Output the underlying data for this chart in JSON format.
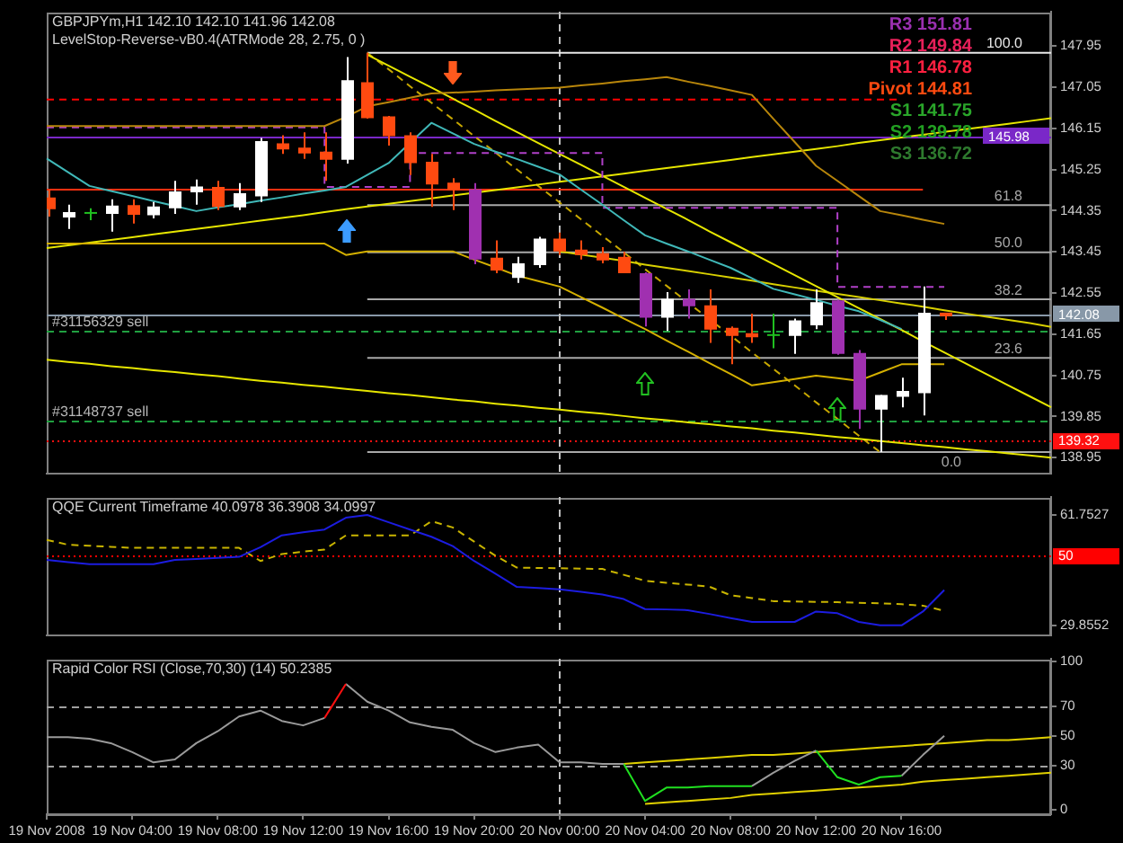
{
  "chart_data": [
    {
      "type": "candlestick",
      "title": "GBPJPYm,H1 142.10 142.10 141.96 142.08",
      "subtitle": "LevelStop-Reverse-vB0.4(ATRMode 28, 2.75, 0 )",
      "categories": [
        "19 Nov 2008",
        null,
        null,
        null,
        "19 Nov 04:00",
        null,
        null,
        null,
        "19 Nov 08:00",
        null,
        null,
        null,
        "19 Nov 12:00",
        null,
        null,
        null,
        "19 Nov 16:00",
        null,
        null,
        null,
        "19 Nov 20:00",
        null,
        null,
        null,
        "20 Nov 00:00",
        null,
        null,
        null,
        "20 Nov 04:00",
        null,
        null,
        null,
        "20 Nov 08:00",
        null,
        null,
        null,
        "20 Nov 12:00",
        null,
        null,
        null,
        "20 Nov 16:00",
        null,
        null,
        null,
        null,
        null,
        null,
        null
      ],
      "ohlc": [
        [
          144.62,
          144.8,
          144.22,
          144.4
        ],
        [
          144.22,
          144.48,
          143.95,
          144.3
        ],
        [
          144.3,
          144.4,
          144.14,
          144.3
        ],
        [
          144.3,
          144.6,
          143.89,
          144.44
        ],
        [
          144.45,
          144.6,
          144.07,
          144.28
        ],
        [
          144.27,
          144.54,
          144.18,
          144.42
        ],
        [
          144.42,
          145.0,
          144.28,
          144.75
        ],
        [
          144.77,
          145.03,
          144.48,
          144.86
        ],
        [
          144.85,
          145.0,
          144.36,
          144.45
        ],
        [
          144.44,
          144.95,
          144.36,
          144.71
        ],
        [
          144.68,
          145.94,
          144.54,
          145.85
        ],
        [
          145.8,
          146.0,
          145.59,
          145.71
        ],
        [
          145.71,
          146.06,
          145.48,
          145.62
        ],
        [
          145.62,
          146.06,
          145.0,
          145.48
        ],
        [
          145.48,
          147.71,
          145.38,
          147.18
        ],
        [
          147.14,
          147.8,
          146.36,
          146.39
        ],
        [
          146.39,
          146.42,
          145.77,
          146.0
        ],
        [
          145.98,
          146.06,
          145.13,
          145.41
        ],
        [
          145.4,
          145.59,
          144.43,
          144.94
        ],
        [
          144.94,
          145.06,
          144.36,
          144.82
        ],
        [
          144.8,
          144.95,
          143.18,
          143.3
        ],
        [
          143.3,
          143.7,
          142.98,
          143.06
        ],
        [
          142.9,
          143.34,
          142.77,
          143.18
        ],
        [
          143.18,
          143.78,
          143.1,
          143.72
        ],
        [
          143.72,
          143.87,
          143.38,
          143.48
        ],
        [
          143.48,
          143.7,
          143.28,
          143.4
        ],
        [
          143.4,
          143.55,
          143.2,
          143.28
        ],
        [
          143.32,
          143.45,
          142.98,
          143.0
        ],
        [
          142.96,
          143.0,
          141.82,
          142.03
        ],
        [
          142.03,
          142.57,
          141.72,
          142.4
        ],
        [
          142.4,
          142.63,
          141.99,
          142.28
        ],
        [
          142.26,
          142.63,
          141.46,
          141.77
        ],
        [
          141.77,
          141.82,
          140.99,
          141.63
        ],
        [
          141.65,
          142.1,
          141.46,
          141.6
        ],
        [
          141.63,
          142.1,
          141.34,
          141.63
        ],
        [
          141.63,
          141.99,
          141.22,
          141.93
        ],
        [
          141.86,
          142.63,
          141.76,
          142.33
        ],
        [
          142.37,
          142.4,
          141.2,
          141.24
        ],
        [
          141.22,
          141.3,
          139.58,
          140.02
        ],
        [
          140.02,
          140.32,
          139.07,
          140.3
        ],
        [
          140.3,
          140.7,
          140.05,
          140.39
        ],
        [
          140.38,
          142.69,
          139.87,
          142.1
        ],
        [
          142.1,
          142.1,
          141.96,
          142.08
        ],
        null,
        null,
        null,
        null,
        null
      ],
      "colors": [
        "#ff4a10",
        "#ffffff",
        "#20c020",
        "#ffffff",
        "#ff4a10",
        "#ffffff",
        "#ffffff",
        "#ffffff",
        "#ff4a10",
        "#ffffff",
        "#ffffff",
        "#ff4a10",
        "#ff4a10",
        "#ff4a10",
        "#ffffff",
        "#ff4a10",
        "#ff4a10",
        "#ff4a10",
        "#ff4a10",
        "#ff4a10",
        "#a030b0",
        "#ff4a10",
        "#ffffff",
        "#ffffff",
        "#ff4a10",
        "#ff4a10",
        "#ff4a10",
        "#ff4a10",
        "#a030b0",
        "#ffffff",
        "#a030b0",
        "#ff4a10",
        "#ff4a10",
        "#ff4a10",
        "#20c020",
        "#ffffff",
        "#ffffff",
        "#a030b0",
        "#a030b0",
        "#ffffff",
        "#ffffff",
        "#ffffff",
        "#ff4a10",
        null,
        null,
        null,
        null,
        null
      ],
      "series": [
        {
          "type": "line",
          "color": "#40b8b8",
          "values": [
            145.49,
            145.19,
            144.89,
            144.78,
            144.67,
            144.56,
            144.45,
            144.34,
            144.42,
            144.49,
            144.57,
            144.64,
            144.72,
            144.79,
            144.87,
            145.13,
            145.39,
            145.83,
            146.27,
            146.04,
            145.81,
            145.64,
            145.48,
            145.31,
            145.14,
            144.81,
            144.48,
            144.14,
            143.81,
            143.63,
            143.46,
            143.28,
            143.1,
            142.87,
            142.64,
            142.52,
            142.4,
            142.27,
            142.15,
            141.96,
            141.76,
            null,
            null,
            null,
            null,
            null,
            null,
            null
          ]
        },
        {
          "type": "line",
          "color": "#b8860b",
          "values": [
            146.2,
            146.2,
            146.2,
            146.2,
            146.2,
            146.2,
            146.2,
            146.2,
            146.2,
            146.2,
            146.2,
            146.2,
            146.2,
            146.2,
            146.4,
            146.63,
            146.72,
            146.82,
            146.91,
            146.93,
            146.95,
            146.98,
            147.0,
            147.02,
            147.04,
            147.09,
            147.13,
            147.18,
            147.22,
            147.27,
            147.17,
            147.08,
            146.98,
            146.88,
            146.36,
            145.85,
            145.33,
            145.0,
            144.67,
            144.34,
            144.25,
            144.15,
            144.06,
            null,
            null,
            null,
            null,
            null
          ]
        },
        {
          "type": "line",
          "color": "#d4b000",
          "values": [
            143.63,
            143.63,
            143.63,
            143.63,
            143.63,
            143.63,
            143.63,
            143.63,
            143.63,
            143.63,
            143.63,
            143.63,
            143.63,
            143.63,
            143.38,
            143.46,
            143.46,
            143.46,
            143.46,
            143.46,
            143.28,
            143.11,
            142.93,
            142.81,
            142.69,
            142.46,
            142.23,
            141.99,
            141.76,
            141.51,
            141.27,
            141.02,
            140.78,
            140.53,
            140.6,
            140.67,
            140.74,
            140.69,
            140.63,
            140.81,
            140.99,
            140.99,
            140.99,
            null,
            null,
            null,
            null,
            null
          ]
        },
        {
          "type": "step",
          "color": "#b040c8",
          "line_style": "dashed",
          "values": [
            146.17,
            146.17,
            146.17,
            146.17,
            146.17,
            146.17,
            146.17,
            146.17,
            146.17,
            146.17,
            146.17,
            146.17,
            146.17,
            146.17,
            144.87,
            144.87,
            144.87,
            144.87,
            145.61,
            145.61,
            145.61,
            145.61,
            145.61,
            145.61,
            145.61,
            145.61,
            145.61,
            144.41,
            144.41,
            144.41,
            144.41,
            144.41,
            144.41,
            144.41,
            144.41,
            144.41,
            144.41,
            144.41,
            142.68,
            142.68,
            142.68,
            142.68,
            142.68,
            null,
            null,
            null,
            null,
            null
          ]
        },
        {
          "type": "line",
          "color": "#e6e600",
          "values": [
            143.53,
            143.59,
            143.65,
            143.71,
            143.77,
            143.83,
            143.89,
            143.95,
            144.01,
            144.07,
            144.13,
            144.19,
            144.25,
            144.32,
            144.38,
            144.44,
            144.5,
            144.56,
            144.62,
            144.68,
            144.74,
            144.8,
            144.86,
            144.92,
            144.98,
            145.04,
            145.1,
            145.16,
            145.22,
            145.28,
            145.34,
            145.4,
            145.46,
            145.52,
            145.58,
            145.64,
            145.7,
            145.76,
            145.83,
            145.89,
            145.95,
            146.01,
            146.07,
            146.13,
            146.19,
            146.25,
            146.31,
            146.37
          ]
        },
        {
          "type": "line",
          "color": "#e6e600",
          "values": [
            141.09,
            141.04,
            141.0,
            140.95,
            140.91,
            140.86,
            140.82,
            140.77,
            140.73,
            140.68,
            140.63,
            140.59,
            140.54,
            140.5,
            140.45,
            140.41,
            140.36,
            140.32,
            140.27,
            140.22,
            140.18,
            140.13,
            140.09,
            140.04,
            140.0,
            139.95,
            139.91,
            139.86,
            139.81,
            139.77,
            139.72,
            139.68,
            139.63,
            139.59,
            139.54,
            139.5,
            139.45,
            139.4,
            139.36,
            139.31,
            139.27,
            139.22,
            139.18,
            139.13,
            139.09,
            139.04,
            139.0,
            138.95
          ]
        },
        {
          "type": "line",
          "color": "#e6e600",
          "values": [
            null,
            null,
            null,
            null,
            null,
            null,
            null,
            null,
            null,
            null,
            null,
            null,
            null,
            null,
            null,
            147.76,
            147.52,
            147.28,
            147.04,
            146.8,
            146.56,
            146.31,
            146.07,
            145.83,
            145.59,
            145.35,
            145.11,
            144.87,
            144.63,
            144.39,
            144.15,
            143.9,
            143.66,
            143.42,
            143.18,
            142.94,
            142.7,
            142.46,
            142.22,
            141.98,
            141.74,
            141.49,
            141.25,
            141.01,
            140.77,
            140.53,
            140.29,
            140.05
          ]
        },
        {
          "type": "line",
          "color": "#d8d000",
          "values": [
            null,
            null,
            null,
            null,
            null,
            null,
            null,
            null,
            null,
            null,
            null,
            null,
            null,
            null,
            null,
            null,
            null,
            null,
            null,
            null,
            null,
            null,
            null,
            null,
            143.46,
            143.39,
            143.32,
            143.25,
            143.17,
            143.1,
            143.03,
            142.96,
            142.89,
            142.82,
            142.74,
            142.67,
            142.6,
            142.53,
            142.46,
            142.39,
            142.32,
            142.25,
            142.17,
            142.1,
            142.03,
            141.96,
            141.89,
            141.81
          ]
        },
        {
          "type": "line",
          "color": "#c8a800",
          "line_style": "dashed",
          "values": [
            null,
            null,
            null,
            null,
            null,
            null,
            null,
            null,
            null,
            null,
            null,
            null,
            null,
            null,
            null,
            147.8,
            147.44,
            147.07,
            146.71,
            146.35,
            145.98,
            145.62,
            145.25,
            144.89,
            144.53,
            144.16,
            143.8,
            143.44,
            143.07,
            142.71,
            142.34,
            141.98,
            141.62,
            141.25,
            140.89,
            140.53,
            140.16,
            139.8,
            139.43,
            139.07,
            null,
            null,
            null,
            null,
            null,
            null,
            null,
            null
          ]
        },
        {
          "type": "line",
          "color": "#ff0000",
          "line_style": "dashed",
          "values": [
            146.78,
            146.78,
            146.78,
            146.78,
            146.78,
            146.78,
            146.78,
            146.78,
            146.78,
            146.78,
            146.78,
            146.78,
            146.78,
            146.78,
            146.78,
            146.78,
            146.78,
            146.78,
            146.78,
            146.78,
            146.78,
            146.78,
            146.78,
            146.78,
            146.78,
            146.78,
            146.78,
            146.78,
            146.78,
            146.78,
            146.78,
            146.78,
            146.78,
            146.78,
            146.78,
            146.78,
            146.78,
            146.78,
            146.78,
            146.78,
            146.78,
            null,
            null,
            null,
            null,
            null,
            null,
            null
          ]
        },
        {
          "type": "line",
          "color": "#ff3010",
          "values": [
            144.81,
            144.81,
            144.81,
            144.81,
            144.81,
            144.81,
            144.81,
            144.81,
            144.81,
            144.81,
            144.81,
            144.81,
            144.81,
            144.81,
            144.81,
            144.81,
            144.81,
            144.81,
            144.81,
            144.81,
            144.81,
            144.81,
            144.81,
            144.81,
            144.81,
            144.81,
            144.81,
            144.81,
            144.81,
            144.81,
            144.81,
            144.81,
            144.81,
            144.81,
            144.81,
            144.81,
            144.81,
            144.81,
            144.81,
            144.81,
            144.81,
            144.81,
            null,
            null,
            null,
            null,
            null,
            null
          ]
        },
        {
          "type": "line",
          "name": "100.0",
          "color": "#e8e8e8",
          "values": [
            null,
            null,
            null,
            null,
            null,
            null,
            null,
            null,
            null,
            null,
            null,
            null,
            null,
            null,
            null,
            147.8,
            147.8,
            147.8,
            147.8,
            147.8,
            147.8,
            147.8,
            147.8,
            147.8,
            147.8,
            147.8,
            147.8,
            147.8,
            147.8,
            147.8,
            147.8,
            147.8,
            147.8,
            147.8,
            147.8,
            147.8,
            147.8,
            147.8,
            147.8,
            147.8,
            147.8,
            147.8,
            147.8,
            147.8,
            147.8,
            147.8,
            147.8,
            147.8
          ]
        },
        {
          "type": "line",
          "name": "61.8",
          "color": "#a8a8a8",
          "values": [
            null,
            null,
            null,
            null,
            null,
            null,
            null,
            null,
            null,
            null,
            null,
            null,
            null,
            null,
            null,
            144.47,
            144.47,
            144.47,
            144.47,
            144.47,
            144.47,
            144.47,
            144.47,
            144.47,
            144.47,
            144.47,
            144.47,
            144.47,
            144.47,
            144.47,
            144.47,
            144.47,
            144.47,
            144.47,
            144.47,
            144.47,
            144.47,
            144.47,
            144.47,
            144.47,
            144.47,
            144.47,
            144.47,
            144.47,
            144.47,
            144.47,
            144.47,
            144.47
          ]
        },
        {
          "type": "line",
          "name": "50.0",
          "color": "#a8a8a8",
          "values": [
            null,
            null,
            null,
            null,
            null,
            null,
            null,
            null,
            null,
            null,
            null,
            null,
            null,
            null,
            null,
            143.44,
            143.44,
            143.44,
            143.44,
            143.44,
            143.44,
            143.44,
            143.44,
            143.44,
            143.44,
            143.44,
            143.44,
            143.44,
            143.44,
            143.44,
            143.44,
            143.44,
            143.44,
            143.44,
            143.44,
            143.44,
            143.44,
            143.44,
            143.44,
            143.44,
            143.44,
            143.44,
            143.44,
            143.44,
            143.44,
            143.44,
            143.44,
            143.44
          ]
        },
        {
          "type": "line",
          "name": "38.2",
          "color": "#a8a8a8",
          "values": [
            null,
            null,
            null,
            null,
            null,
            null,
            null,
            null,
            null,
            null,
            null,
            null,
            null,
            null,
            null,
            142.41,
            142.41,
            142.41,
            142.41,
            142.41,
            142.41,
            142.41,
            142.41,
            142.41,
            142.41,
            142.41,
            142.41,
            142.41,
            142.41,
            142.41,
            142.41,
            142.41,
            142.41,
            142.41,
            142.41,
            142.41,
            142.41,
            142.41,
            142.41,
            142.41,
            142.41,
            142.41,
            142.41,
            142.41,
            142.41,
            142.41,
            142.41,
            142.41
          ]
        },
        {
          "type": "line",
          "name": "23.6",
          "color": "#a8a8a8",
          "values": [
            null,
            null,
            null,
            null,
            null,
            null,
            null,
            null,
            null,
            null,
            null,
            null,
            null,
            null,
            null,
            141.13,
            141.13,
            141.13,
            141.13,
            141.13,
            141.13,
            141.13,
            141.13,
            141.13,
            141.13,
            141.13,
            141.13,
            141.13,
            141.13,
            141.13,
            141.13,
            141.13,
            141.13,
            141.13,
            141.13,
            141.13,
            141.13,
            141.13,
            141.13,
            141.13,
            141.13,
            141.13,
            141.13,
            141.13,
            141.13,
            141.13,
            141.13,
            141.13
          ]
        },
        {
          "type": "line",
          "name": "0.0",
          "color": "#a8a8a8",
          "values": [
            null,
            null,
            null,
            null,
            null,
            null,
            null,
            null,
            null,
            null,
            null,
            null,
            null,
            null,
            null,
            139.07,
            139.07,
            139.07,
            139.07,
            139.07,
            139.07,
            139.07,
            139.07,
            139.07,
            139.07,
            139.07,
            139.07,
            139.07,
            139.07,
            139.07,
            139.07,
            139.07,
            139.07,
            139.07,
            139.07,
            139.07,
            139.07,
            139.07,
            139.07,
            139.07,
            139.07,
            139.07,
            139.07,
            139.07,
            139.07,
            139.07,
            139.07,
            139.07
          ]
        }
      ],
      "ylim": [
        138.6,
        148.7
      ],
      "yticks": [
        147.95,
        147.05,
        146.15,
        145.25,
        144.35,
        143.45,
        142.55,
        141.65,
        140.75,
        139.85,
        138.95
      ],
      "tick_labels": "y",
      "ref_lines": [
        {
          "axis": "y",
          "value": 145.98,
          "label": "145.98",
          "color": "#7a28c8"
        },
        {
          "axis": "y",
          "value": 142.08,
          "label": "142.08",
          "color": "#8898a8"
        },
        {
          "axis": "y",
          "value": 139.32,
          "label": "139.32",
          "color": "#ff1010",
          "line_style": "dotted"
        },
        {
          "axis": "y",
          "value": 141.72,
          "color": "#20a040",
          "line_style": "dashed"
        },
        {
          "axis": "y",
          "value": 139.74,
          "color": "#20a040",
          "line_style": "dashed"
        },
        {
          "axis": "x",
          "value": "20 Nov 00:00",
          "color": "#c0c0c0",
          "line_style": "dashed"
        }
      ],
      "annotations": [
        "R3 151.81",
        "R2 149.84",
        "R1 146.78",
        "Pivot 144.81",
        "S1 141.75",
        "S2 139.78",
        "S3 136.72",
        {
          "text": "#31156329 sell",
          "y": 141.72
        },
        {
          "text": "#31148737 sell",
          "y": 139.74
        }
      ]
    },
    {
      "type": "line",
      "title": "QQE Current Timeframe 40.0978 36.3908 34.0997",
      "categories": [
        "19 Nov 2008",
        null,
        null,
        null,
        "19 Nov 04:00",
        null,
        null,
        null,
        "19 Nov 08:00",
        null,
        null,
        null,
        "19 Nov 12:00",
        null,
        null,
        null,
        "19 Nov 16:00",
        null,
        null,
        null,
        "19 Nov 20:00",
        null,
        null,
        null,
        "20 Nov 00:00",
        null,
        null,
        null,
        "20 Nov 04:00",
        null,
        null,
        null,
        "20 Nov 08:00",
        null,
        null,
        null,
        "20 Nov 12:00",
        null,
        null,
        null,
        "20 Nov 16:00",
        null,
        null,
        null,
        null,
        null,
        null,
        null
      ],
      "series": [
        {
          "color": "#1c1ce0",
          "values": [
            48.8,
            48.2,
            47.6,
            47.6,
            47.6,
            47.6,
            48.8,
            49.1,
            49.4,
            49.7,
            52.5,
            55.9,
            56.8,
            57.6,
            61.0,
            61.8,
            59.7,
            57.6,
            55.5,
            52.8,
            48.5,
            44.8,
            41.0,
            40.7,
            40.3,
            39.6,
            38.8,
            37.5,
            34.6,
            34.5,
            34.3,
            33.2,
            32.0,
            30.9,
            30.9,
            30.9,
            33.9,
            33.4,
            30.9,
            29.9,
            29.9,
            33.9,
            40.1,
            null,
            null,
            null,
            null,
            null
          ]
        },
        {
          "color": "#c8b400",
          "line_style": "dashed",
          "values": [
            54.6,
            53.2,
            52.9,
            52.6,
            52.3,
            52.3,
            52.3,
            52.3,
            52.3,
            52.3,
            48.5,
            50.5,
            51.2,
            51.8,
            55.9,
            55.9,
            55.9,
            55.9,
            60.0,
            58.2,
            54.1,
            50.0,
            46.6,
            46.5,
            46.4,
            46.3,
            46.2,
            44.5,
            42.8,
            42.2,
            41.7,
            41.1,
            38.6,
            37.8,
            36.9,
            36.8,
            36.7,
            36.6,
            36.4,
            36.3,
            36.0,
            35.6,
            34.1,
            null,
            null,
            null,
            null,
            null
          ]
        }
      ],
      "ylim": [
        27,
        67
      ],
      "yticks": [
        61.7527,
        29.8552
      ],
      "tick_labels": "y",
      "ref_lines": [
        {
          "axis": "y",
          "value": 50,
          "label": "50",
          "color": "#ff0000",
          "line_style": "dotted"
        },
        {
          "axis": "x",
          "value": "20 Nov 00:00",
          "color": "#c0c0c0",
          "line_style": "dashed"
        }
      ]
    },
    {
      "type": "line",
      "title": "Rapid Color RSI (Close,70,30) (14) 50.2385",
      "categories": [
        "19 Nov 2008",
        null,
        null,
        null,
        "19 Nov 04:00",
        null,
        null,
        null,
        "19 Nov 08:00",
        null,
        null,
        null,
        "19 Nov 12:00",
        null,
        null,
        null,
        "19 Nov 16:00",
        null,
        null,
        null,
        "19 Nov 20:00",
        null,
        null,
        null,
        "20 Nov 00:00",
        null,
        null,
        null,
        "20 Nov 04:00",
        null,
        null,
        null,
        "20 Nov 08:00",
        null,
        null,
        null,
        "20 Nov 12:00",
        null,
        null,
        null,
        "20 Nov 16:00",
        null,
        null,
        null,
        null,
        null,
        null,
        null
      ],
      "series": [
        {
          "color": "#9a9a9a",
          "values": [
            49,
            49,
            48,
            45,
            39,
            32,
            34,
            45,
            53,
            63,
            67,
            60,
            57,
            62,
            null,
            null,
            null,
            null,
            null,
            null,
            null,
            null,
            null,
            null,
            null,
            null,
            null,
            null,
            null,
            null,
            null,
            null,
            null,
            null,
            null,
            null,
            null,
            null,
            null,
            null,
            null,
            null,
            null,
            null,
            null,
            null,
            null,
            null
          ]
        },
        {
          "color": "#ff1010",
          "values": [
            null,
            null,
            null,
            null,
            null,
            null,
            null,
            null,
            null,
            null,
            null,
            null,
            null,
            62,
            85,
            null,
            null,
            null,
            null,
            null,
            null,
            null,
            null,
            null,
            null,
            null,
            null,
            null,
            null,
            null,
            null,
            null,
            null,
            null,
            null,
            null,
            null,
            null,
            null,
            null,
            null,
            null,
            null,
            null,
            null,
            null,
            null,
            null
          ]
        },
        {
          "color": "#9a9a9a",
          "values": [
            null,
            null,
            null,
            null,
            null,
            null,
            null,
            null,
            null,
            null,
            null,
            null,
            null,
            null,
            85,
            73,
            67,
            59,
            56,
            54,
            45,
            39,
            42,
            44,
            32,
            32,
            31,
            31,
            null,
            null,
            null,
            null,
            null,
            null,
            null,
            null,
            null,
            null,
            null,
            null,
            null,
            null,
            null,
            null,
            null,
            null,
            null,
            null
          ]
        },
        {
          "color": "#20e020",
          "values": [
            null,
            null,
            null,
            null,
            null,
            null,
            null,
            null,
            null,
            null,
            null,
            null,
            null,
            null,
            null,
            null,
            null,
            null,
            null,
            null,
            null,
            null,
            null,
            null,
            null,
            null,
            null,
            31,
            6,
            15,
            15,
            16,
            16,
            16,
            null,
            null,
            null,
            null,
            null,
            null,
            null,
            null,
            null,
            null,
            null,
            null,
            null,
            null
          ]
        },
        {
          "color": "#9a9a9a",
          "values": [
            null,
            null,
            null,
            null,
            null,
            null,
            null,
            null,
            null,
            null,
            null,
            null,
            null,
            null,
            null,
            null,
            null,
            null,
            null,
            null,
            null,
            null,
            null,
            null,
            null,
            null,
            null,
            null,
            null,
            null,
            null,
            null,
            null,
            16,
            25,
            33,
            40,
            null,
            null,
            null,
            null,
            null,
            null,
            null,
            null,
            null,
            null,
            null
          ]
        },
        {
          "color": "#20e020",
          "values": [
            null,
            null,
            null,
            null,
            null,
            null,
            null,
            null,
            null,
            null,
            null,
            null,
            null,
            null,
            null,
            null,
            null,
            null,
            null,
            null,
            null,
            null,
            null,
            null,
            null,
            null,
            null,
            null,
            null,
            null,
            null,
            null,
            null,
            null,
            null,
            null,
            40,
            22,
            17,
            22,
            23,
            null,
            null,
            null,
            null,
            null,
            null,
            null
          ]
        },
        {
          "color": "#9a9a9a",
          "values": [
            null,
            null,
            null,
            null,
            null,
            null,
            null,
            null,
            null,
            null,
            null,
            null,
            null,
            null,
            null,
            null,
            null,
            null,
            null,
            null,
            null,
            null,
            null,
            null,
            null,
            null,
            null,
            null,
            null,
            null,
            null,
            null,
            null,
            null,
            null,
            null,
            null,
            null,
            null,
            null,
            23,
            37,
            50,
            null,
            null,
            null,
            null,
            null
          ]
        },
        {
          "color": "#e0d000",
          "values": [
            null,
            null,
            null,
            null,
            null,
            null,
            null,
            null,
            null,
            null,
            null,
            null,
            null,
            null,
            null,
            null,
            null,
            null,
            null,
            null,
            null,
            null,
            null,
            null,
            null,
            null,
            null,
            31,
            32,
            33,
            34,
            35,
            36,
            37,
            37,
            38,
            39,
            40,
            41,
            42,
            43,
            44,
            45,
            46,
            47,
            47,
            48,
            49
          ]
        },
        {
          "color": "#e0d000",
          "values": [
            null,
            null,
            null,
            null,
            null,
            null,
            null,
            null,
            null,
            null,
            null,
            null,
            null,
            null,
            null,
            null,
            null,
            null,
            null,
            null,
            null,
            null,
            null,
            null,
            null,
            null,
            null,
            null,
            4,
            5,
            6,
            7,
            8,
            10,
            11,
            12,
            13,
            14,
            15,
            16,
            17,
            19,
            20,
            21,
            22,
            23,
            24,
            25
          ]
        }
      ],
      "ylim": [
        -3,
        102
      ],
      "yticks": [
        100,
        70,
        50,
        30,
        0
      ],
      "ref_lines": [
        {
          "axis": "y",
          "value": 70,
          "color": "#a0a0a0",
          "line_style": "dashed"
        },
        {
          "axis": "y",
          "value": 30,
          "color": "#a0a0a0",
          "line_style": "dashed"
        },
        {
          "axis": "x",
          "value": "20 Nov 00:00",
          "color": "#c0c0c0",
          "line_style": "dashed"
        }
      ]
    }
  ]
}
